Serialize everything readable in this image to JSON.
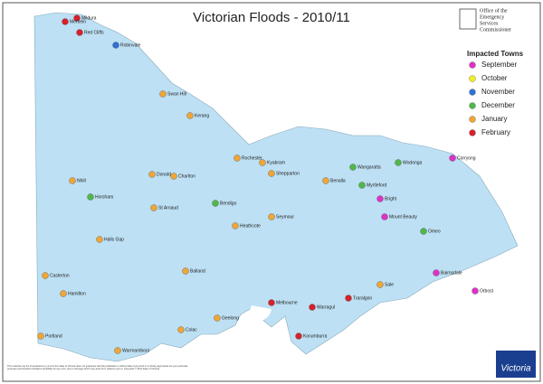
{
  "title": "Victorian Floods - 2010/11",
  "logo": {
    "line1": "Office of the",
    "line2": "Emergency",
    "line3": "Services",
    "line4": "Commissioner"
  },
  "legend": {
    "title": "Impacted Towns",
    "items": [
      {
        "label": "September",
        "color": "#e030c8"
      },
      {
        "label": "October",
        "color": "#f0f020"
      },
      {
        "label": "November",
        "color": "#2f6fd6"
      },
      {
        "label": "December",
        "color": "#4fb848"
      },
      {
        "label": "January",
        "color": "#f0a637"
      },
      {
        "label": "February",
        "color": "#d8202a"
      }
    ]
  },
  "towns": [
    {
      "name": "Mildura",
      "month": 5
    },
    {
      "name": "Merbein",
      "month": 5
    },
    {
      "name": "Red Cliffs",
      "month": 5
    },
    {
      "name": "Robinvale",
      "month": 2
    },
    {
      "name": "Swan Hill",
      "month": 4
    },
    {
      "name": "Kerang",
      "month": 4
    },
    {
      "name": "Rochester",
      "month": 4
    },
    {
      "name": "Kyabram",
      "month": 4
    },
    {
      "name": "Charlton",
      "month": 4
    },
    {
      "name": "Donald",
      "month": 4
    },
    {
      "name": "Nhill",
      "month": 4
    },
    {
      "name": "St Arnaud",
      "month": 4
    },
    {
      "name": "Bendigo",
      "month": 3
    },
    {
      "name": "Heathcote",
      "month": 4
    },
    {
      "name": "Halls Gap",
      "month": 4
    },
    {
      "name": "Horsham",
      "month": 3
    },
    {
      "name": "Shepparton",
      "month": 4
    },
    {
      "name": "Benalla",
      "month": 4
    },
    {
      "name": "Wangaratta",
      "month": 3
    },
    {
      "name": "Wodonga",
      "month": 3
    },
    {
      "name": "Myrtleford",
      "month": 3
    },
    {
      "name": "Bright",
      "month": 0
    },
    {
      "name": "Mount Beauty",
      "month": 0
    },
    {
      "name": "Corryong",
      "month": 0
    },
    {
      "name": "Omeo",
      "month": 3
    },
    {
      "name": "Seymour",
      "month": 4
    },
    {
      "name": "Ballarat",
      "month": 4
    },
    {
      "name": "Casterton",
      "month": 4
    },
    {
      "name": "Hamilton",
      "month": 4
    },
    {
      "name": "Portland",
      "month": 4
    },
    {
      "name": "Warrnambool",
      "month": 4
    },
    {
      "name": "Colac",
      "month": 4
    },
    {
      "name": "Geelong",
      "month": 4
    },
    {
      "name": "Melbourne",
      "month": 5
    },
    {
      "name": "Warragul",
      "month": 5
    },
    {
      "name": "Korumburra",
      "month": 5
    },
    {
      "name": "Traralgon",
      "month": 5
    },
    {
      "name": "Sale",
      "month": 4
    },
    {
      "name": "Bairnsdale",
      "month": 0
    },
    {
      "name": "Orbost",
      "month": 0
    }
  ],
  "footer": "This material may be of assistance to you but the State of Victoria does not guarantee that the publication is without flaw of any kind or is wholly appropriate for your particular purposes and therefore disclaims all liability for any error, loss or damage which may arise from reliance upon it. Copyright © 2011 State of Victoria.",
  "brand": "Victoria"
}
